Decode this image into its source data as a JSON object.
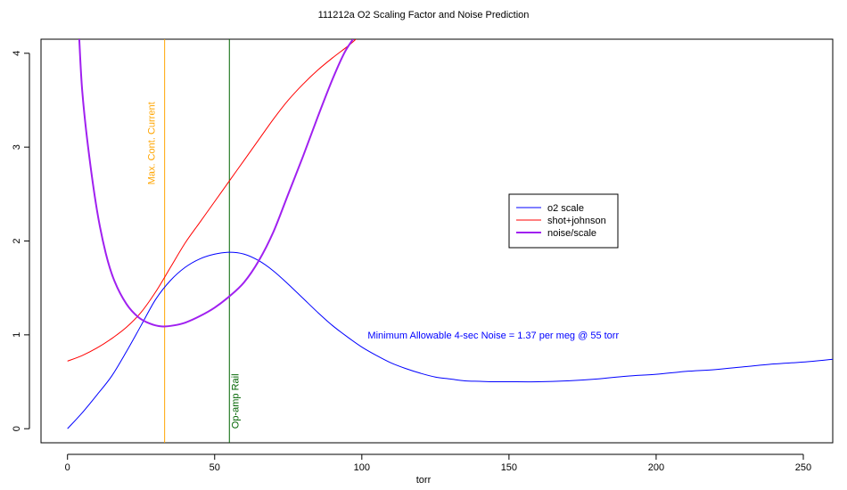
{
  "colors": {
    "o2_scale": "#0000ff",
    "shot_johnson": "#ff0000",
    "noise_scale": "#a020f0",
    "max_current_line": "#ffa500",
    "op_amp_line": "#006400",
    "annotation_text": "#0000ff",
    "axis": "#000000"
  },
  "chart_data": {
    "type": "line",
    "title": "111212a   O2 Scaling Factor and Noise Prediction",
    "xlabel": "torr",
    "ylabel": "",
    "xlim": [
      -9,
      260
    ],
    "ylim": [
      -0.15,
      4.15
    ],
    "x_ticks": [
      0,
      50,
      100,
      150,
      200,
      250
    ],
    "x_tick_labels": [
      "0",
      "50",
      "100",
      "150",
      "200",
      "250"
    ],
    "y_ticks": [
      0,
      1,
      2,
      3,
      4
    ],
    "y_tick_labels": [
      "0",
      "1",
      "2",
      "3",
      "4"
    ],
    "grid": false,
    "legend_position": "center-right",
    "series": [
      {
        "name": "o2 scale",
        "color_key": "o2_scale",
        "width": 1,
        "points": [
          [
            0,
            0
          ],
          [
            5,
            0.17
          ],
          [
            10,
            0.36
          ],
          [
            15,
            0.56
          ],
          [
            20,
            0.82
          ],
          [
            25,
            1.1
          ],
          [
            30,
            1.38
          ],
          [
            35,
            1.58
          ],
          [
            40,
            1.72
          ],
          [
            45,
            1.81
          ],
          [
            50,
            1.86
          ],
          [
            55,
            1.88
          ],
          [
            60,
            1.86
          ],
          [
            65,
            1.79
          ],
          [
            70,
            1.68
          ],
          [
            75,
            1.54
          ],
          [
            80,
            1.39
          ],
          [
            85,
            1.24
          ],
          [
            90,
            1.1
          ],
          [
            95,
            0.98
          ],
          [
            100,
            0.87
          ],
          [
            105,
            0.78
          ],
          [
            110,
            0.7
          ],
          [
            115,
            0.64
          ],
          [
            120,
            0.59
          ],
          [
            125,
            0.55
          ],
          [
            130,
            0.53
          ],
          [
            135,
            0.51
          ],
          [
            140,
            0.505
          ],
          [
            145,
            0.5
          ],
          [
            150,
            0.5
          ],
          [
            160,
            0.5
          ],
          [
            170,
            0.51
          ],
          [
            180,
            0.53
          ],
          [
            190,
            0.56
          ],
          [
            200,
            0.58
          ],
          [
            210,
            0.61
          ],
          [
            220,
            0.63
          ],
          [
            230,
            0.66
          ],
          [
            240,
            0.69
          ],
          [
            250,
            0.71
          ],
          [
            260,
            0.74
          ]
        ]
      },
      {
        "name": "shot+johnson",
        "color_key": "shot_johnson",
        "width": 1,
        "points": [
          [
            0,
            0.72
          ],
          [
            5,
            0.78
          ],
          [
            10,
            0.86
          ],
          [
            15,
            0.96
          ],
          [
            20,
            1.08
          ],
          [
            25,
            1.24
          ],
          [
            30,
            1.46
          ],
          [
            35,
            1.72
          ],
          [
            40,
            1.98
          ],
          [
            45,
            2.2
          ],
          [
            50,
            2.42
          ],
          [
            55,
            2.64
          ],
          [
            60,
            2.86
          ],
          [
            65,
            3.08
          ],
          [
            70,
            3.3
          ],
          [
            75,
            3.5
          ],
          [
            80,
            3.67
          ],
          [
            85,
            3.82
          ],
          [
            90,
            3.95
          ],
          [
            95,
            4.07
          ],
          [
            98,
            4.15
          ]
        ]
      },
      {
        "name": "noise/scale",
        "color_key": "noise_scale",
        "width": 2,
        "points": [
          [
            4,
            4.15
          ],
          [
            5,
            3.6
          ],
          [
            7,
            3.0
          ],
          [
            10,
            2.33
          ],
          [
            13,
            1.87
          ],
          [
            16,
            1.57
          ],
          [
            20,
            1.33
          ],
          [
            24,
            1.19
          ],
          [
            28,
            1.12
          ],
          [
            32,
            1.09
          ],
          [
            36,
            1.1
          ],
          [
            40,
            1.13
          ],
          [
            45,
            1.2
          ],
          [
            50,
            1.29
          ],
          [
            55,
            1.41
          ],
          [
            60,
            1.56
          ],
          [
            65,
            1.79
          ],
          [
            70,
            2.1
          ],
          [
            75,
            2.5
          ],
          [
            80,
            2.9
          ],
          [
            85,
            3.32
          ],
          [
            90,
            3.72
          ],
          [
            94,
            4.0
          ],
          [
            97,
            4.15
          ]
        ]
      }
    ],
    "vlines": [
      {
        "x": 33,
        "color_key": "max_current_line",
        "label": "Max. Cont. Current"
      },
      {
        "x": 55,
        "color_key": "op_amp_line",
        "label": "Op-amp Rail"
      }
    ],
    "annotation": {
      "text": "Minimum Allowable 4-sec Noise =  1.37  per meg @  55  torr",
      "x": 102,
      "y": 1.0
    }
  }
}
